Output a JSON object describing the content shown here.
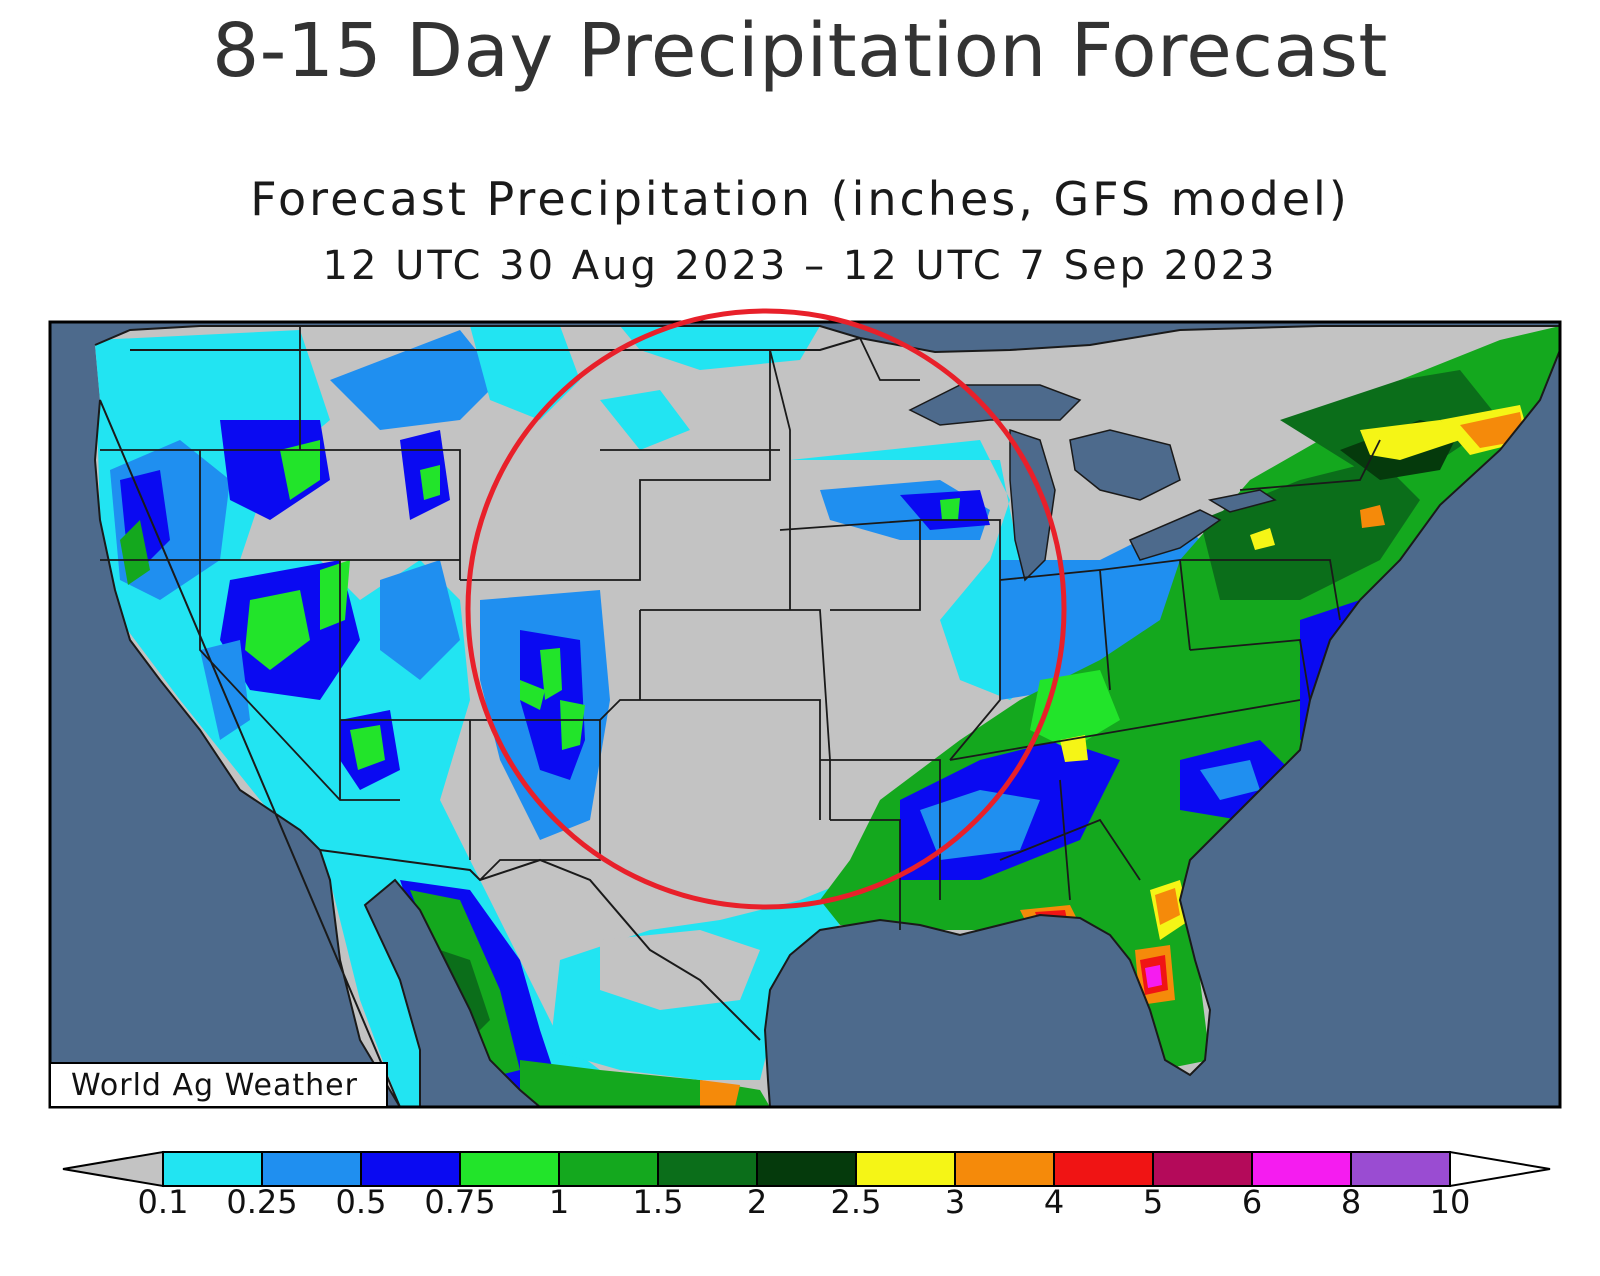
{
  "title": "8-15 Day Precipitation Forecast",
  "subtitle": "Forecast Precipitation (inches, GFS model)",
  "date_range": "12 UTC 30 Aug 2023 – 12 UTC 7 Sep 2023",
  "credit": "World Ag Weather",
  "colors": {
    "ocean": "#4d6a8c",
    "land_dry": "#c3c3c3",
    "border": "#1a1a1a",
    "highlight_circle": "#e8202a"
  },
  "legend": {
    "under_color": "#c3c3c3",
    "over_color": "#ffffff",
    "bins": [
      {
        "color": "#22e4f2"
      },
      {
        "color": "#1f8ff0"
      },
      {
        "color": "#0a0af2"
      },
      {
        "color": "#22e42a"
      },
      {
        "color": "#14a81e"
      },
      {
        "color": "#0b6e1a"
      },
      {
        "color": "#053a0c"
      },
      {
        "color": "#f5f516"
      },
      {
        "color": "#f58a0a"
      },
      {
        "color": "#f01414"
      },
      {
        "color": "#b40a5a"
      },
      {
        "color": "#f51cf0"
      },
      {
        "color": "#9a4cd2"
      }
    ],
    "ticks": [
      "0.1",
      "0.25",
      "0.5",
      "0.75",
      "1",
      "1.5",
      "2",
      "2.5",
      "3",
      "4",
      "5",
      "6",
      "8",
      "10"
    ]
  }
}
